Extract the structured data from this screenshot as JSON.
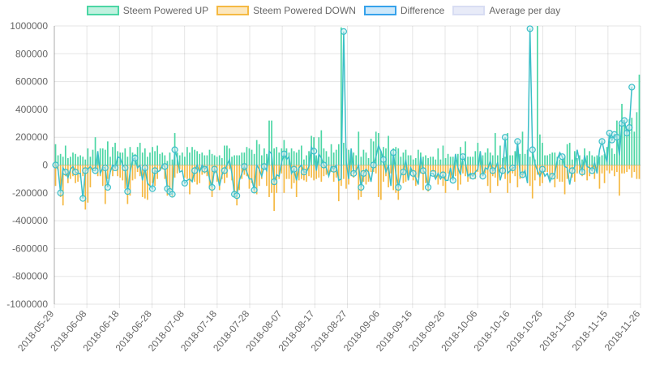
{
  "chart_data": {
    "type": "bar",
    "title": "",
    "xlabel": "",
    "ylabel": "",
    "ylim": [
      -1000000,
      1000000
    ],
    "y_ticks": [
      "1000000",
      "800000",
      "600000",
      "400000",
      "200000",
      "0",
      "-200000",
      "-400000",
      "-600000",
      "-800000",
      "-1000000"
    ],
    "y_tick_values": [
      1000000,
      800000,
      600000,
      400000,
      200000,
      0,
      -200000,
      -400000,
      -600000,
      -800000,
      -1000000
    ],
    "x_tick_labels": [
      "2018-05-29",
      "2018-06-08",
      "2018-06-18",
      "2018-06-28",
      "2018-07-08",
      "2018-07-18",
      "2018-07-28",
      "2018-08-07",
      "2018-08-17",
      "2018-08-27",
      "2018-09-06",
      "2018-09-16",
      "2018-09-26",
      "2018-10-06",
      "2018-10-16",
      "2018-10-26",
      "2018-11-05",
      "2018-11-15",
      "2018-11-26"
    ],
    "grid": true,
    "legend_position": "top",
    "series": [
      {
        "name": "Steem Powered UP",
        "type": "bar",
        "color": "#4bd6a4",
        "values": [
          150000,
          70000,
          80000,
          60000,
          140000,
          50000,
          60000,
          90000,
          80000,
          60000,
          70000,
          60000,
          40000,
          120000,
          60000,
          110000,
          200000,
          90000,
          120000,
          120000,
          110000,
          170000,
          60000,
          130000,
          160000,
          100000,
          90000,
          90000,
          120000,
          60000,
          130000,
          90000,
          80000,
          130000,
          160000,
          90000,
          120000,
          60000,
          90000,
          130000,
          100000,
          140000,
          80000,
          90000,
          70000,
          30000,
          90000,
          40000,
          230000,
          90000,
          70000,
          90000,
          60000,
          130000,
          90000,
          130000,
          110000,
          100000,
          80000,
          90000,
          70000,
          70000,
          110000,
          80000,
          70000,
          60000,
          70000,
          50000,
          140000,
          140000,
          120000,
          60000,
          70000,
          70000,
          70000,
          90000,
          90000,
          130000,
          120000,
          110000,
          80000,
          180000,
          150000,
          70000,
          120000,
          80000,
          320000,
          320000,
          120000,
          130000,
          90000,
          120000,
          180000,
          120000,
          90000,
          120000,
          100000,
          90000,
          110000,
          140000,
          40000,
          70000,
          100000,
          210000,
          200000,
          70000,
          200000,
          250000,
          120000,
          100000,
          60000,
          150000,
          90000,
          110000,
          150000,
          990000,
          160000,
          120000,
          110000,
          70000,
          90000,
          70000,
          240000,
          60000,
          110000,
          90000,
          50000,
          190000,
          170000,
          240000,
          230000,
          100000,
          130000,
          120000,
          210000,
          90000,
          120000,
          130000,
          120000,
          60000,
          90000,
          110000,
          70000,
          70000,
          40000,
          50000,
          110000,
          90000,
          60000,
          70000,
          50000,
          60000,
          60000,
          40000,
          120000,
          40000,
          140000,
          50000,
          80000,
          60000,
          60000,
          40000,
          80000,
          130000,
          30000,
          170000,
          60000,
          60000,
          60000,
          100000,
          160000,
          70000,
          70000,
          90000,
          120000,
          90000,
          70000,
          230000,
          70000,
          140000,
          50000,
          60000,
          230000,
          70000,
          70000,
          100000,
          130000,
          80000,
          240000,
          80000,
          110000,
          60000,
          90000,
          40000,
          1000000,
          220000,
          160000,
          70000,
          70000,
          80000,
          90000,
          90000,
          60000,
          40000,
          40000,
          60000,
          150000,
          160000,
          40000,
          100000,
          50000,
          70000,
          40000,
          120000,
          70000,
          100000,
          70000,
          60000,
          70000,
          60000,
          70000,
          80000,
          130000,
          220000,
          120000,
          80000,
          320000,
          290000,
          440000,
          300000,
          230000,
          330000,
          340000,
          240000,
          380000,
          650000
        ]
      },
      {
        "name": "Steem Powered DOWN",
        "type": "bar",
        "color": "#f5b942",
        "values": [
          -150000,
          -40000,
          -230000,
          -290000,
          -80000,
          -130000,
          -100000,
          -80000,
          -130000,
          -120000,
          -90000,
          -80000,
          -320000,
          -270000,
          -160000,
          -30000,
          -30000,
          -80000,
          -80000,
          -150000,
          -280000,
          -100000,
          -50000,
          -80000,
          -30000,
          -80000,
          -90000,
          -110000,
          -170000,
          -280000,
          -220000,
          -110000,
          -100000,
          -50000,
          -80000,
          -230000,
          -240000,
          -250000,
          -150000,
          -130000,
          -150000,
          -100000,
          -40000,
          -30000,
          -100000,
          -220000,
          -200000,
          -230000,
          -90000,
          -60000,
          -30000,
          -50000,
          -90000,
          -100000,
          -210000,
          -120000,
          -120000,
          -140000,
          -130000,
          -70000,
          -60000,
          -80000,
          -170000,
          -230000,
          -60000,
          -120000,
          -180000,
          -100000,
          -130000,
          -90000,
          -30000,
          -110000,
          -230000,
          -290000,
          -180000,
          -100000,
          -70000,
          -80000,
          -170000,
          -130000,
          -200000,
          -210000,
          -150000,
          -100000,
          -30000,
          -150000,
          -230000,
          -200000,
          -330000,
          -200000,
          -100000,
          -60000,
          -200000,
          -100000,
          -100000,
          -170000,
          -130000,
          -230000,
          -110000,
          -100000,
          -110000,
          -120000,
          -80000,
          -90000,
          -110000,
          -100000,
          -90000,
          -120000,
          -80000,
          -70000,
          -60000,
          -50000,
          -120000,
          -90000,
          -260000,
          -150000,
          -100000,
          -170000,
          -140000,
          -80000,
          -90000,
          -60000,
          -250000,
          -230000,
          -120000,
          -140000,
          -120000,
          -50000,
          -50000,
          -60000,
          -230000,
          -250000,
          -120000,
          -80000,
          -160000,
          -60000,
          -180000,
          -200000,
          -250000,
          -80000,
          -130000,
          -120000,
          -90000,
          -50000,
          -110000,
          -150000,
          -90000,
          -60000,
          -180000,
          -130000,
          -190000,
          -50000,
          -50000,
          -90000,
          -140000,
          -60000,
          -150000,
          -200000,
          -60000,
          -100000,
          -70000,
          -80000,
          -180000,
          -140000,
          -60000,
          -80000,
          -120000,
          -100000,
          -70000,
          -100000,
          -50000,
          -90000,
          -60000,
          -60000,
          -150000,
          -200000,
          -80000,
          -90000,
          -150000,
          -50000,
          -60000,
          -100000,
          -200000,
          -130000,
          -60000,
          -80000,
          -160000,
          -100000,
          -90000,
          -70000,
          -70000,
          -150000,
          -240000,
          -110000,
          -70000,
          -150000,
          -130000,
          -50000,
          -50000,
          -100000,
          -90000,
          -160000,
          -100000,
          -120000,
          -120000,
          -210000,
          -100000,
          -60000,
          -90000,
          -120000,
          -60000,
          -50000,
          -80000,
          -70000,
          -110000,
          -80000,
          -40000,
          -100000,
          -60000,
          -170000,
          -60000,
          -130000,
          -40000,
          -60000,
          -40000,
          -80000,
          -50000,
          -220000,
          -60000,
          -60000,
          -50000,
          -30000,
          -90000,
          -50000,
          -100000,
          -100000
        ]
      },
      {
        "name": "Difference",
        "type": "line",
        "color": "#3bbfc8",
        "values": [
          0,
          -30000,
          -200000,
          -20000,
          -50000,
          -90000,
          -30000,
          -10000,
          -50000,
          -60000,
          -60000,
          -240000,
          -40000,
          -30000,
          -10000,
          -40000,
          -40000,
          100000,
          -60000,
          -20000,
          -20000,
          -160000,
          -50000,
          0,
          -20000,
          60000,
          50000,
          0,
          -20000,
          -190000,
          -50000,
          40000,
          50000,
          -20000,
          0,
          -110000,
          -20000,
          -130000,
          -150000,
          -170000,
          -40000,
          -50000,
          -40000,
          0,
          -10000,
          -170000,
          -190000,
          -210000,
          110000,
          50000,
          -50000,
          -40000,
          -130000,
          -110000,
          -100000,
          -120000,
          -40000,
          0,
          -50000,
          0,
          -30000,
          -10000,
          -100000,
          -160000,
          -30000,
          -60000,
          -150000,
          -70000,
          -40000,
          0,
          40000,
          -60000,
          -210000,
          -220000,
          -110000,
          -60000,
          -10000,
          -50000,
          -100000,
          -100000,
          -180000,
          0,
          -30000,
          -80000,
          -10000,
          -40000,
          100000,
          80000,
          -120000,
          -70000,
          -80000,
          20000,
          80000,
          40000,
          60000,
          -60000,
          -30000,
          -110000,
          -20000,
          0,
          -50000,
          -50000,
          -10000,
          130000,
          100000,
          -40000,
          80000,
          50000,
          0,
          -20000,
          -80000,
          -10000,
          -30000,
          0,
          -110000,
          -100000,
          960000,
          30000,
          -100000,
          120000,
          -60000,
          -40000,
          0,
          -160000,
          -60000,
          -30000,
          -50000,
          -120000,
          0,
          60000,
          140000,
          100000,
          40000,
          -50000,
          0,
          -150000,
          90000,
          -60000,
          -160000,
          -70000,
          -50000,
          40000,
          -110000,
          -20000,
          -60000,
          -90000,
          -140000,
          60000,
          -40000,
          -60000,
          -160000,
          -60000,
          -60000,
          -100000,
          -60000,
          -100000,
          -70000,
          -110000,
          -110000,
          -20000,
          -110000,
          80000,
          -20000,
          -70000,
          60000,
          20000,
          -80000,
          -60000,
          -80000,
          -50000,
          -30000,
          100000,
          -80000,
          -20000,
          -30000,
          30000,
          -40000,
          -30000,
          20000,
          -110000,
          -40000,
          200000,
          -60000,
          -40000,
          -20000,
          -20000,
          170000,
          -60000,
          -70000,
          -40000,
          -130000,
          980000,
          110000,
          10000,
          -40000,
          -80000,
          -30000,
          -80000,
          -60000,
          -120000,
          -80000,
          -60000,
          40000,
          90000,
          60000,
          -10000,
          -20000,
          -140000,
          -40000,
          -10000,
          110000,
          20000,
          -50000,
          70000,
          -10000,
          -20000,
          -40000,
          20000,
          -60000,
          110000,
          170000,
          90000,
          20000,
          230000,
          180000,
          220000,
          200000,
          70000,
          300000,
          320000,
          230000,
          270000,
          560000
        ]
      },
      {
        "name": "Average per day",
        "type": "line",
        "color": "#e6e9f7",
        "values": []
      }
    ]
  },
  "legend": [
    {
      "label": "Steem Powered UP",
      "fill": "rgba(75,214,164,0.35)",
      "border": "#4bd6a4"
    },
    {
      "label": "Steem Powered DOWN",
      "fill": "rgba(245,185,66,0.35)",
      "border": "#f5b942"
    },
    {
      "label": "Difference",
      "fill": "rgba(54,162,235,0.25)",
      "border": "#36a2eb"
    },
    {
      "label": "Average per day",
      "fill": "rgba(210,216,242,0.5)",
      "border": "#d8ddf3"
    }
  ]
}
